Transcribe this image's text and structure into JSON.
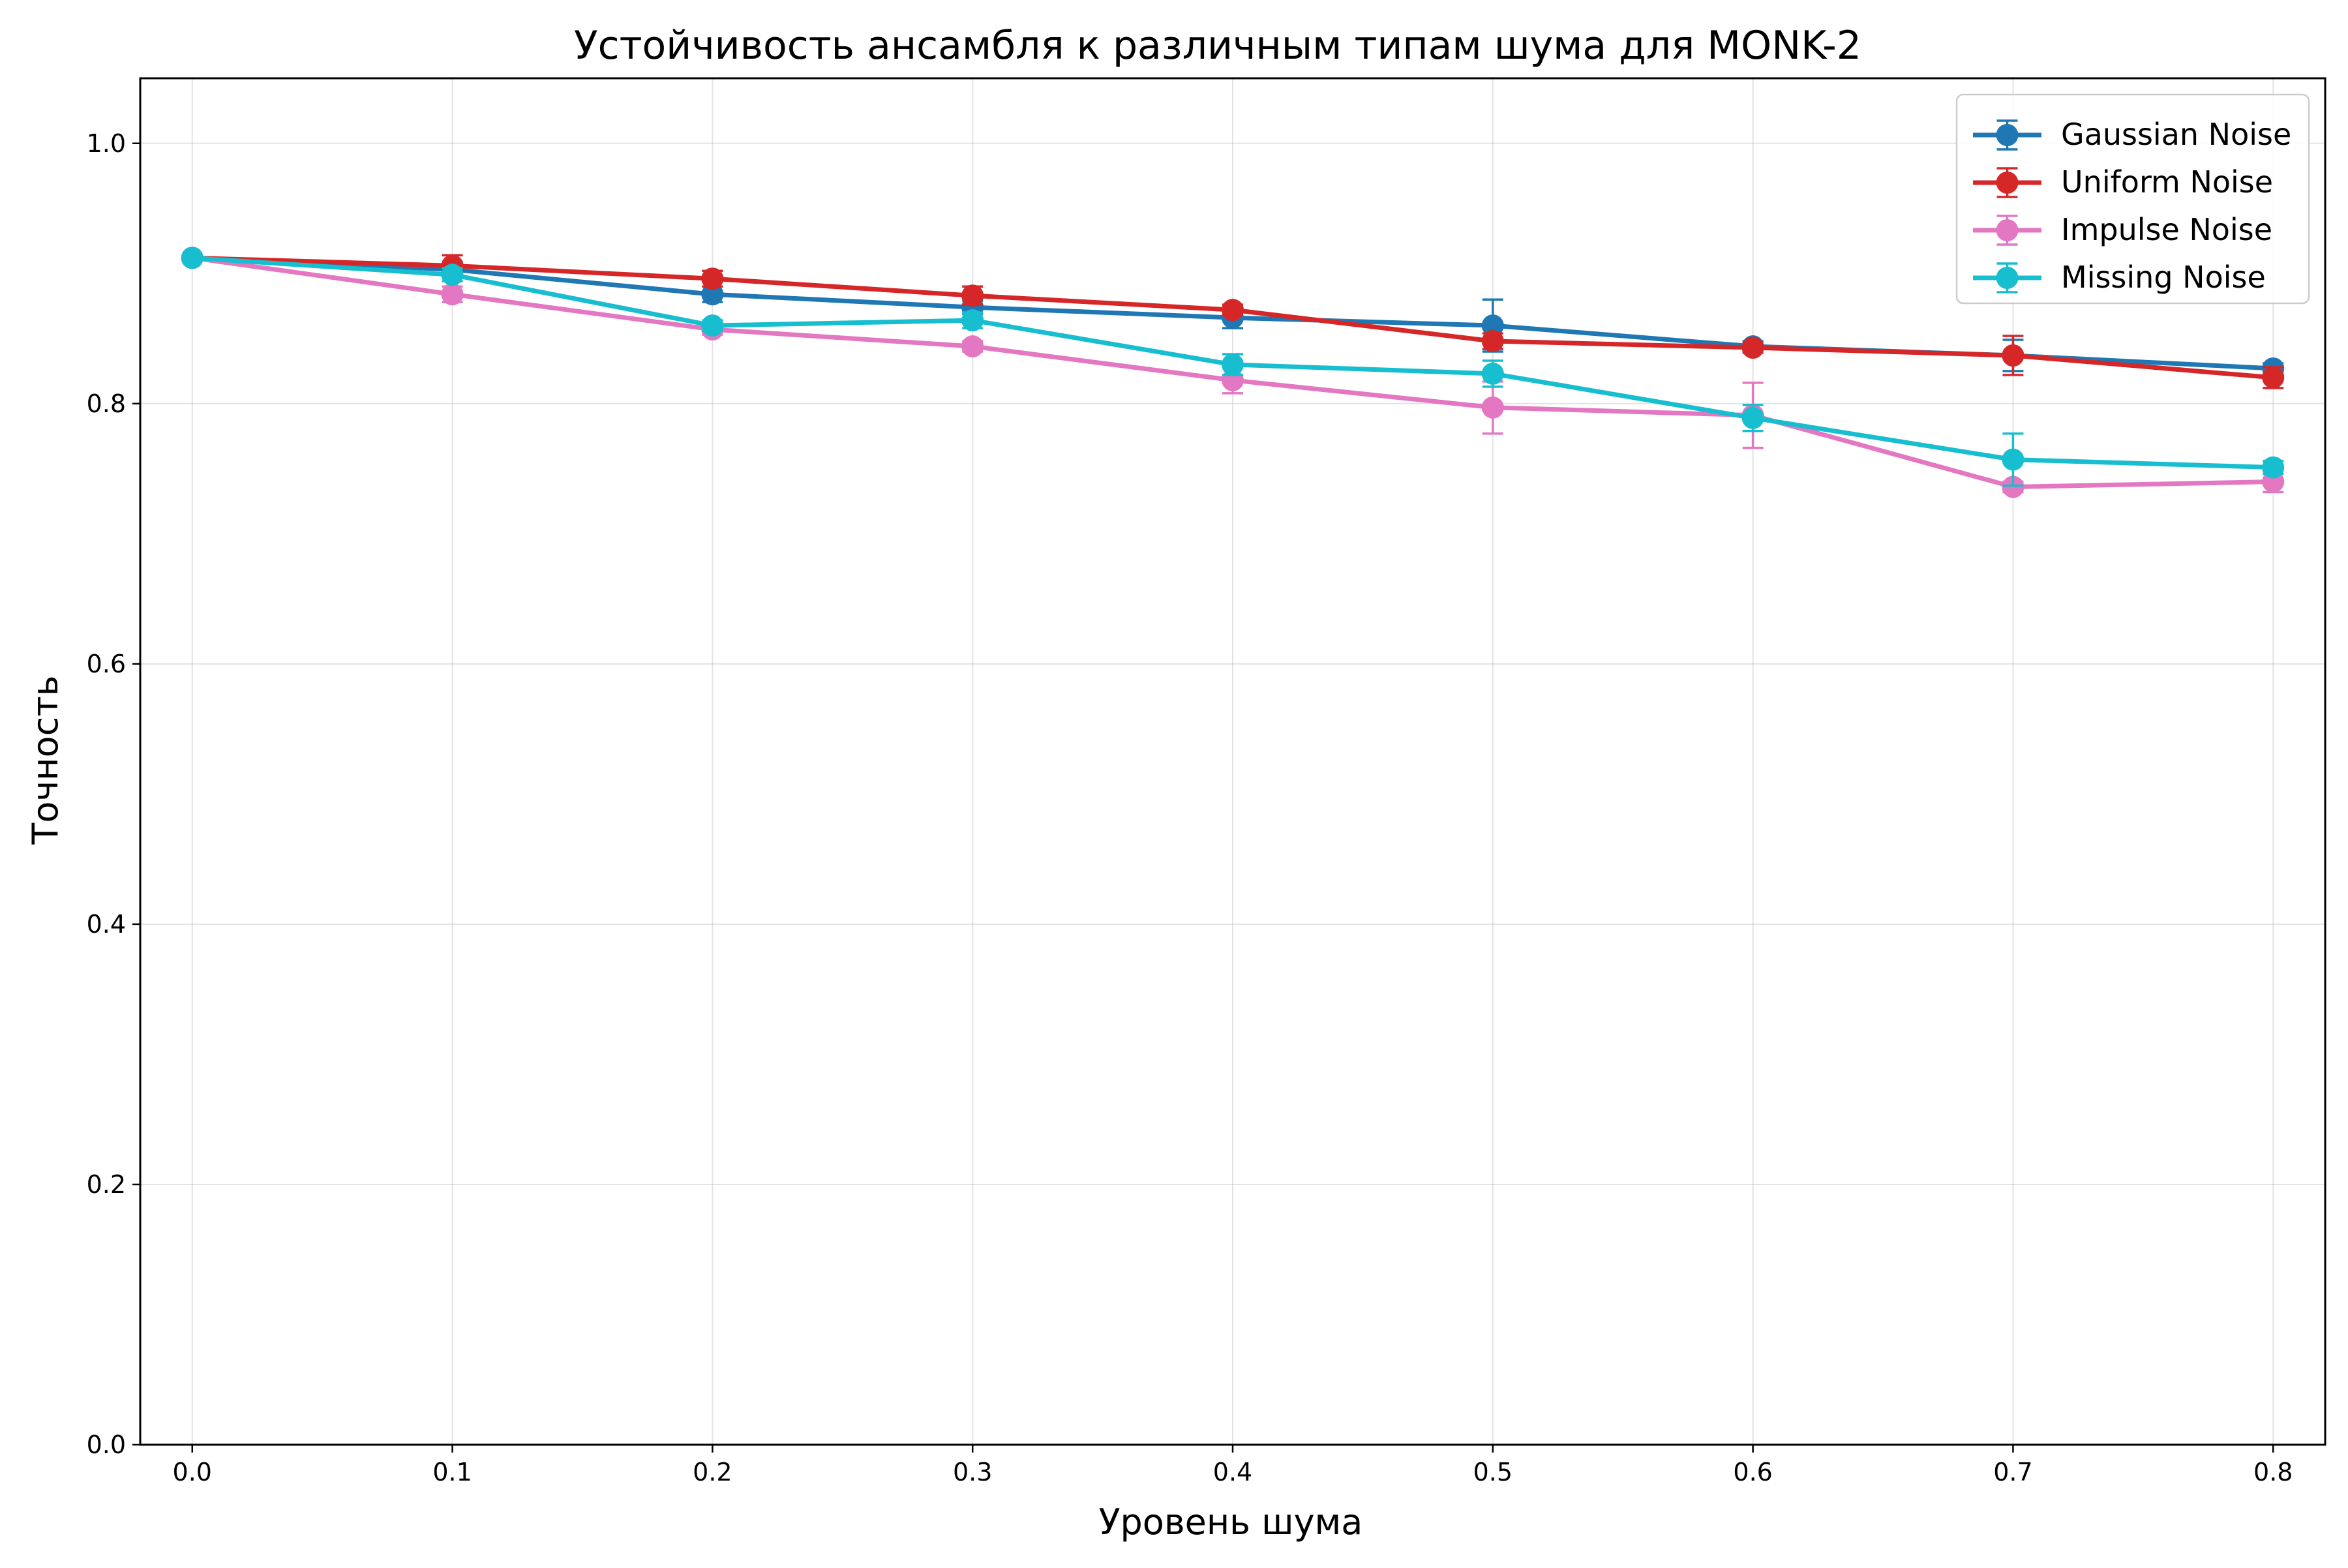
{
  "chart_data": {
    "type": "line",
    "title": "Устойчивость ансамбля к различным типам шума для MONK-2",
    "xlabel": "Уровень шума",
    "ylabel": "Точность",
    "x": [
      0.0,
      0.1,
      0.2,
      0.3,
      0.4,
      0.5,
      0.6,
      0.7,
      0.8
    ],
    "xticks": [
      "0.0",
      "0.1",
      "0.2",
      "0.3",
      "0.4",
      "0.5",
      "0.6",
      "0.7",
      "0.8"
    ],
    "yticks": [
      "0.0",
      "0.2",
      "0.4",
      "0.6",
      "0.8",
      "1.0"
    ],
    "xlim": [
      -0.02,
      0.82
    ],
    "ylim": [
      0.0,
      1.05
    ],
    "grid": true,
    "legend_position": "top-right",
    "series": [
      {
        "name": "Gaussian Noise",
        "color": "#1f77b4",
        "values": [
          0.912,
          0.903,
          0.884,
          0.874,
          0.866,
          0.86,
          0.844,
          0.837,
          0.827
        ],
        "errors": [
          0.002,
          0.006,
          0.006,
          0.005,
          0.008,
          0.02,
          0.004,
          0.012,
          0.004
        ]
      },
      {
        "name": "Uniform Noise",
        "color": "#d62728",
        "values": [
          0.912,
          0.906,
          0.896,
          0.883,
          0.872,
          0.848,
          0.843,
          0.837,
          0.82
        ],
        "errors": [
          0.002,
          0.008,
          0.006,
          0.007,
          0.004,
          0.006,
          0.004,
          0.015,
          0.008
        ]
      },
      {
        "name": "Impulse Noise",
        "color": "#e377c2",
        "values": [
          0.912,
          0.884,
          0.857,
          0.844,
          0.818,
          0.797,
          0.791,
          0.736,
          0.74
        ],
        "errors": [
          0.002,
          0.006,
          0.004,
          0.004,
          0.01,
          0.02,
          0.025,
          0.004,
          0.008
        ]
      },
      {
        "name": "Missing Noise",
        "color": "#17becf",
        "values": [
          0.912,
          0.899,
          0.86,
          0.864,
          0.83,
          0.823,
          0.789,
          0.757,
          0.751
        ],
        "errors": [
          0.002,
          0.005,
          0.004,
          0.006,
          0.008,
          0.01,
          0.01,
          0.02,
          0.005
        ]
      }
    ]
  }
}
